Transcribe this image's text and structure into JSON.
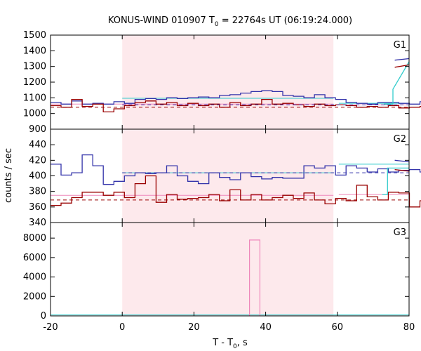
{
  "chart_data": {
    "type": "line",
    "title": {
      "main": "KONUS-WIND 010907 T",
      "sub": "0",
      "rest": " = 22764s UT (06:19:24.000)"
    },
    "xlabel": {
      "main": "T - T",
      "sub": "0",
      "rest": ", s"
    },
    "ylabel": "counts / sec",
    "xlim": [
      -20,
      80
    ],
    "x_ticks": [
      "-20",
      "0",
      "20",
      "40",
      "60",
      "80"
    ],
    "highlight_interval": [
      0,
      58.9
    ],
    "colors": {
      "blue": "#3333aa",
      "red": "#990000",
      "cyan": "#33cccc",
      "pink": "#ee88bb",
      "shade": "#fde9ec"
    },
    "panels": [
      {
        "label": "G1",
        "ylim": [
          900,
          1500
        ],
        "y_ticks": [
          "900",
          "1000",
          "1100",
          "1200",
          "1300",
          "1400",
          "1500"
        ],
        "blue": {
          "x0": -20,
          "step": 2.944,
          "values": [
            1070,
            1060,
            1080,
            1060,
            1065,
            1060,
            1075,
            1065,
            1090,
            1095,
            1090,
            1100,
            1095,
            1100,
            1105,
            1100,
            1115,
            1120,
            1130,
            1140,
            1145,
            1140,
            1115,
            1110,
            1100,
            1120,
            1100,
            1090,
            1070,
            1065,
            1060,
            1070,
            1070,
            1065,
            1060,
            1075
          ]
        },
        "red": {
          "x0": -20,
          "step": 2.944,
          "values": [
            1050,
            1040,
            1090,
            1045,
            1060,
            1010,
            1030,
            1050,
            1070,
            1080,
            1060,
            1070,
            1050,
            1065,
            1050,
            1060,
            1040,
            1070,
            1050,
            1060,
            1090,
            1060,
            1065,
            1055,
            1045,
            1060,
            1050,
            1055,
            1050,
            1040,
            1045,
            1040,
            1050,
            1035,
            1040,
            1045
          ]
        },
        "cyan_segments": [
          {
            "x": [
              0,
              58.9
            ],
            "y": 1097
          },
          {
            "x": [
              60.4,
              80
            ],
            "y": 1065
          }
        ],
        "pink_segments": [
          {
            "x": [
              -20,
              58.9
            ],
            "y": 1060
          },
          {
            "x": [
              60.4,
              80
            ],
            "y": 1055
          }
        ],
        "red_dash": 1040,
        "blue_dash": 1055,
        "cyan_tail": {
          "x": [
            73,
            75.5,
            75.5,
            80
          ],
          "y": [
            1060,
            1060,
            1155,
            1330
          ]
        },
        "blue_tail": {
          "x": [
            76,
            80
          ],
          "y": [
            1340,
            1350
          ]
        },
        "red_tail": {
          "x": [
            76,
            80
          ],
          "y": [
            1295,
            1310
          ]
        }
      },
      {
        "label": "G2",
        "ylim": [
          340,
          460
        ],
        "y_ticks": [
          "340",
          "360",
          "380",
          "400",
          "420",
          "440"
        ],
        "blue": {
          "x0": -20,
          "step": 2.944,
          "values": [
            415,
            401,
            404,
            427,
            413,
            389,
            393,
            400,
            404,
            403,
            404,
            413,
            400,
            393,
            390,
            404,
            398,
            395,
            404,
            399,
            396,
            398,
            397,
            397,
            413,
            410,
            413,
            401,
            413,
            410,
            405,
            409,
            405,
            407,
            408,
            405
          ]
        },
        "red": {
          "x0": -20,
          "step": 2.944,
          "values": [
            362,
            365,
            372,
            379,
            379,
            375,
            379,
            372,
            390,
            400,
            366,
            376,
            370,
            371,
            372,
            376,
            368,
            382,
            369,
            376,
            369,
            372,
            375,
            371,
            378,
            369,
            364,
            371,
            368,
            388,
            373,
            369,
            379,
            378,
            360,
            368
          ]
        },
        "cyan_segments": [
          {
            "x": [
              0,
              58.9
            ],
            "y": 404
          },
          {
            "x": [
              60.4,
              80
            ],
            "y": 415
          }
        ],
        "pink_segments": [
          {
            "x": [
              -20,
              58.9
            ],
            "y": 375
          },
          {
            "x": [
              60.4,
              80
            ],
            "y": 376
          }
        ],
        "red_dash": 369,
        "blue_dash": 404,
        "cyan_tail": {
          "x": [
            72.5,
            74,
            74,
            80
          ],
          "y": [
            376,
            376,
            410,
            410
          ]
        },
        "blue_tail": {
          "x": [
            76,
            80
          ],
          "y": [
            420,
            418
          ]
        },
        "red_tail": {
          "x": [
            76,
            80
          ],
          "y": [
            408,
            406
          ]
        }
      },
      {
        "label": "G3",
        "ylim": [
          0,
          9600
        ],
        "y_ticks": [
          "0",
          "2000",
          "4000",
          "6000",
          "8000"
        ],
        "baseline": 100,
        "spike": {
          "x0": 35.5,
          "x1": 38.4,
          "y": 7800
        }
      }
    ]
  }
}
